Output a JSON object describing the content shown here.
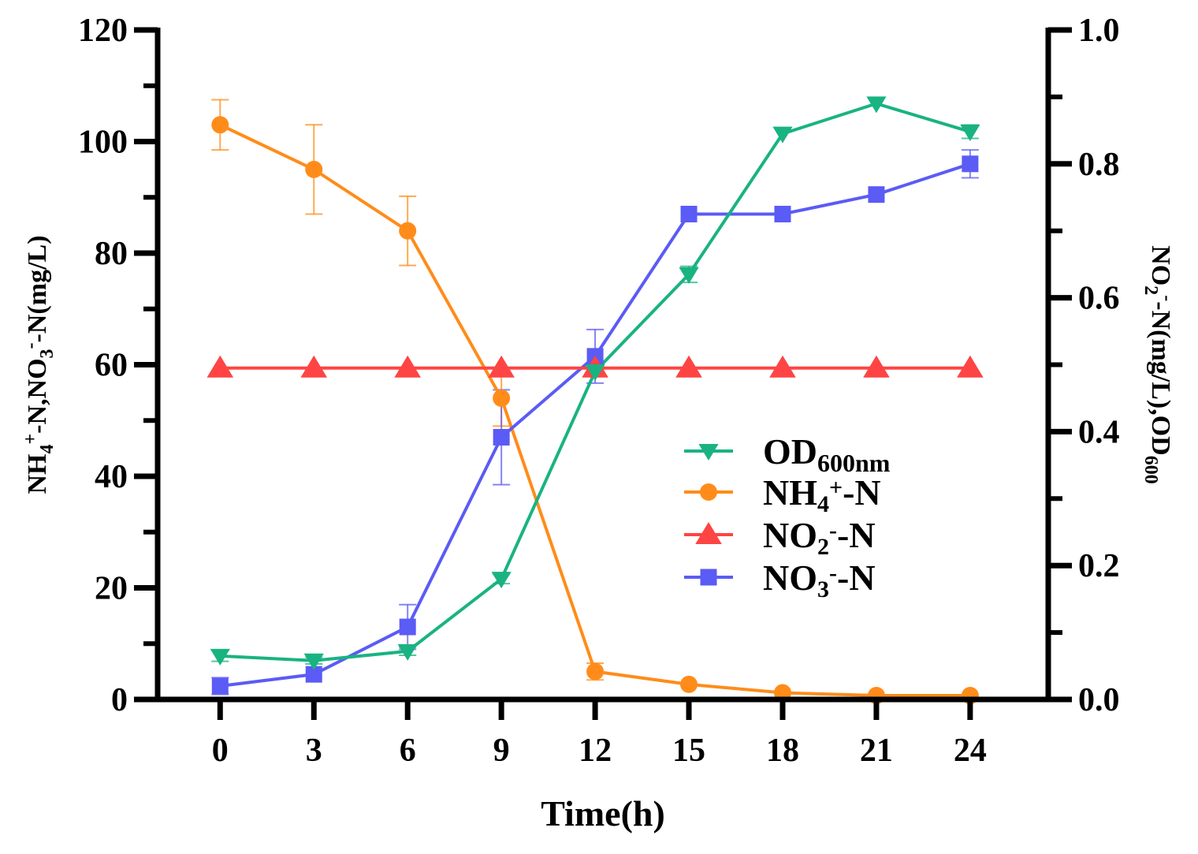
{
  "chart_data": {
    "type": "line",
    "x": [
      0,
      3,
      6,
      9,
      12,
      15,
      18,
      21,
      24
    ],
    "x_tick_labels": [
      "0",
      "3",
      "6",
      "9",
      "12",
      "15",
      "18",
      "21",
      "24"
    ],
    "xlabel": "Time(h)",
    "xlim": [
      -2,
      26.5
    ],
    "y_left": {
      "label_parts": [
        "NH",
        "4",
        "+",
        "-N,NO",
        "3",
        "-",
        "-N(mg/L)"
      ],
      "ylim": [
        0,
        120
      ],
      "ticks": [
        "0",
        "20",
        "40",
        "60",
        "80",
        "100",
        "120"
      ]
    },
    "y_right": {
      "label_parts": [
        "NO",
        "2",
        "-",
        "-N(mg/L),OD",
        "600"
      ],
      "ylim": [
        0,
        1.0
      ],
      "ticks": [
        "0.0",
        "0.2",
        "0.4",
        "0.6",
        "0.8",
        "1.0"
      ]
    },
    "series": [
      {
        "key": "nh4",
        "name": "NH4+-N",
        "legend_parts": [
          "NH",
          "4",
          "+",
          "-N"
        ],
        "axis": "left",
        "color": "#FF8C1A",
        "marker": "circle",
        "values": [
          103,
          95,
          84,
          54,
          5,
          2.7,
          1.2,
          0.7,
          0.7
        ],
        "errors": [
          4.5,
          8,
          6.2,
          5,
          1.5,
          0,
          0,
          0,
          0
        ]
      },
      {
        "key": "no3",
        "name": "NO3--N",
        "legend_parts": [
          "NO",
          "3",
          "-",
          "-N"
        ],
        "axis": "left",
        "color": "#5B5BF5",
        "marker": "square",
        "values": [
          2.4,
          4.5,
          13,
          47,
          61.5,
          87,
          87,
          90.5,
          96
        ],
        "errors": [
          1.5,
          0,
          4,
          8.5,
          4.8,
          0,
          0,
          0,
          2.5
        ]
      },
      {
        "key": "no2",
        "name": "NO2--N",
        "legend_parts": [
          "NO",
          "2",
          "-",
          "-N"
        ],
        "axis": "right",
        "color": "#FF4444",
        "marker": "triangle-up",
        "values": [
          0.495,
          0.495,
          0.495,
          0.495,
          0.495,
          0.495,
          0.495,
          0.495,
          0.495
        ],
        "errors": [
          0,
          0,
          0,
          0,
          0,
          0,
          0,
          0,
          0
        ]
      },
      {
        "key": "od",
        "name": "OD600nm",
        "legend_parts": [
          "OD",
          "600nm"
        ],
        "axis": "right",
        "color": "#19B382",
        "marker": "triangle-down",
        "values": [
          0.065,
          0.058,
          0.072,
          0.18,
          0.49,
          0.635,
          0.845,
          0.89,
          0.848
        ],
        "errors": [
          0.008,
          0.005,
          0.006,
          0.007,
          0,
          0.012,
          0,
          0,
          0.01
        ]
      }
    ],
    "legend_order": [
      "od",
      "nh4",
      "no2",
      "no3"
    ],
    "legend_position": "center-right"
  }
}
